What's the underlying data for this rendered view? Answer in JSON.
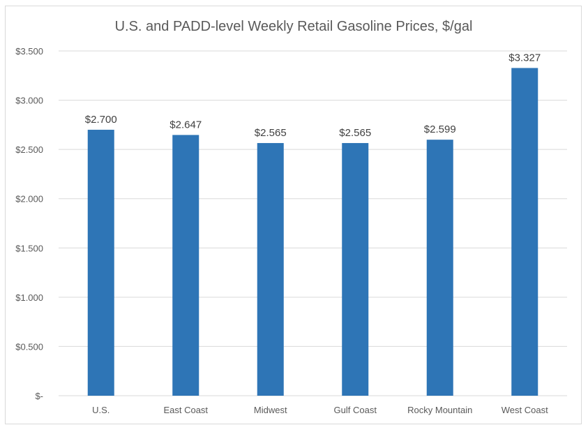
{
  "chart_data": {
    "type": "bar",
    "title": "U.S. and PADD-level Weekly Retail Gasoline Prices, $/gal",
    "xlabel": "",
    "ylabel": "",
    "categories": [
      "U.S.",
      "East Coast",
      "Midwest",
      "Gulf Coast",
      "Rocky Mountain",
      "West Coast"
    ],
    "values": [
      2.7,
      2.647,
      2.565,
      2.565,
      2.599,
      3.327
    ],
    "data_labels": [
      "$2.700",
      "$2.647",
      "$2.565",
      "$2.565",
      "$2.599",
      "$3.327"
    ],
    "ylim": [
      0,
      3.5
    ],
    "yticks": [
      0,
      0.5,
      1.0,
      1.5,
      2.0,
      2.5,
      3.0,
      3.5
    ],
    "ytick_labels": [
      "$-",
      "$0.500",
      "$1.000",
      "$1.500",
      "$2.000",
      "$2.500",
      "$3.000",
      "$3.500"
    ],
    "grid": true,
    "legend": "none",
    "bar_color": "#2E75B6"
  }
}
